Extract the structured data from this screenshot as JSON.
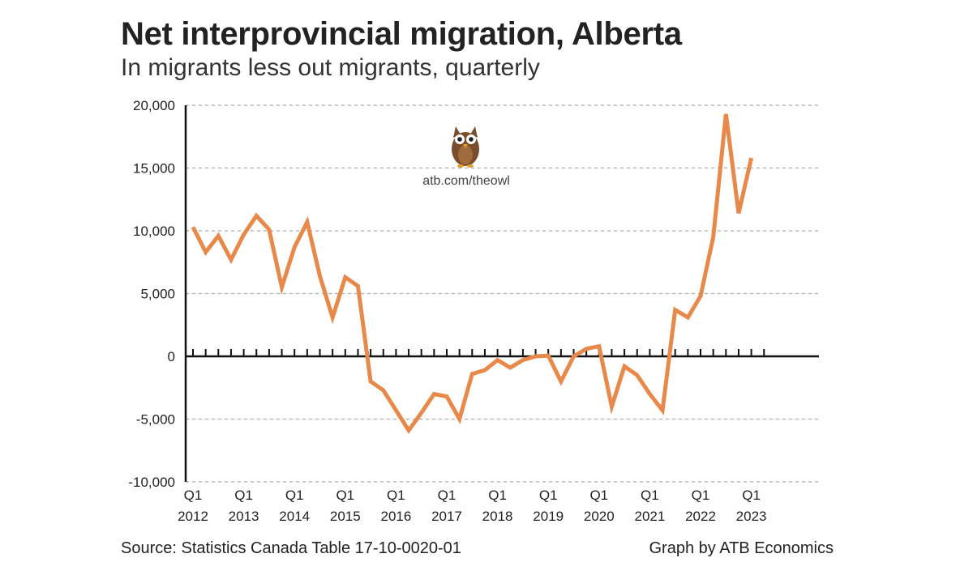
{
  "chart_data": {
    "type": "line",
    "title": "Net interprovincial migration, Alberta",
    "subtitle": "In migrants less out migrants, quarterly",
    "ylim": [
      -10000,
      20000
    ],
    "yticks": [
      -10000,
      -5000,
      0,
      5000,
      10000,
      15000,
      20000
    ],
    "ytick_labels": [
      "-10,000",
      "-5,000",
      "0",
      "5,000",
      "10,000",
      "15,000",
      "20,000"
    ],
    "xtick_labels": [
      {
        "quarter": "Q1",
        "year": "2012"
      },
      {
        "quarter": "Q1",
        "year": "2013"
      },
      {
        "quarter": "Q1",
        "year": "2014"
      },
      {
        "quarter": "Q1",
        "year": "2015"
      },
      {
        "quarter": "Q1",
        "year": "2016"
      },
      {
        "quarter": "Q1",
        "year": "2017"
      },
      {
        "quarter": "Q1",
        "year": "2018"
      },
      {
        "quarter": "Q1",
        "year": "2019"
      },
      {
        "quarter": "Q1",
        "year": "2020"
      },
      {
        "quarter": "Q1",
        "year": "2021"
      },
      {
        "quarter": "Q1",
        "year": "2022"
      },
      {
        "quarter": "Q1",
        "year": "2023"
      }
    ],
    "grid": true,
    "series": [
      {
        "color": "#E8894A",
        "x": [
          "2012 Q1",
          "2012 Q2",
          "2012 Q3",
          "2012 Q4",
          "2013 Q1",
          "2013 Q2",
          "2013 Q3",
          "2013 Q4",
          "2014 Q1",
          "2014 Q2",
          "2014 Q3",
          "2014 Q4",
          "2015 Q1",
          "2015 Q2",
          "2015 Q3",
          "2015 Q4",
          "2016 Q1",
          "2016 Q2",
          "2016 Q3",
          "2016 Q4",
          "2017 Q1",
          "2017 Q2",
          "2017 Q3",
          "2017 Q4",
          "2018 Q1",
          "2018 Q2",
          "2018 Q3",
          "2018 Q4",
          "2019 Q1",
          "2019 Q2",
          "2019 Q3",
          "2019 Q4",
          "2020 Q1",
          "2020 Q2",
          "2020 Q3",
          "2020 Q4",
          "2021 Q1",
          "2021 Q2",
          "2021 Q3",
          "2021 Q4",
          "2022 Q1",
          "2022 Q2",
          "2022 Q3",
          "2022 Q4",
          "2023 Q1",
          "2023 Q2"
        ],
        "values": [
          10300,
          8300,
          9600,
          7700,
          9700,
          11200,
          10100,
          5500,
          8700,
          10700,
          6400,
          3100,
          6300,
          5600,
          -2000,
          -2700,
          -4300,
          -5900,
          -4500,
          -3000,
          -3200,
          -5000,
          -1400,
          -1100,
          -300,
          -900,
          -300,
          0,
          50,
          -2000,
          0,
          600,
          800,
          -4000,
          -800,
          -1500,
          -3000,
          -4300,
          3700,
          3100,
          4800,
          9500,
          19300,
          11400,
          15800,
          null
        ]
      }
    ]
  },
  "watermark": {
    "icon": "owl-icon",
    "text": "atb.com/theowl"
  },
  "footer": {
    "source": "Source: Statistics Canada Table 17-10-0020-01",
    "credit": "Graph by ATB Economics"
  }
}
